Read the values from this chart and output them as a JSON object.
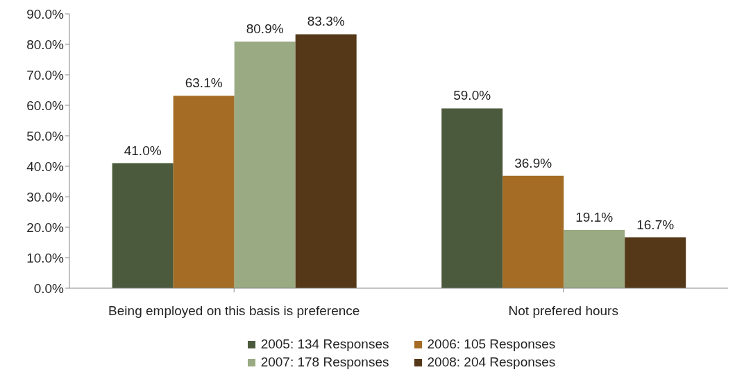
{
  "chart_data": {
    "type": "bar",
    "categories": [
      "Being employed on this basis is preference",
      "Not prefered hours"
    ],
    "series": [
      {
        "name": "2005: 134 Responses",
        "color": "#4b5a3c",
        "values": [
          41.0,
          59.0
        ],
        "value_labels": [
          "41.0%",
          "59.0%"
        ]
      },
      {
        "name": "2006: 105 Responses",
        "color": "#a56c25",
        "values": [
          63.1,
          36.9
        ],
        "value_labels": [
          "63.1%",
          "36.9%"
        ]
      },
      {
        "name": "2007: 178 Responses",
        "color": "#9aaa82",
        "values": [
          80.9,
          19.1
        ],
        "value_labels": [
          "80.9%",
          "19.1%"
        ]
      },
      {
        "name": "2008: 204 Responses",
        "color": "#543817",
        "values": [
          83.3,
          16.7
        ],
        "value_labels": [
          "83.3%",
          "16.7%"
        ]
      }
    ],
    "ylim": [
      0,
      90
    ],
    "yticks": [
      {
        "value": 0,
        "label": "0.0%"
      },
      {
        "value": 10,
        "label": "10.0%"
      },
      {
        "value": 20,
        "label": "20.0%"
      },
      {
        "value": 30,
        "label": "30.0%"
      },
      {
        "value": 40,
        "label": "40.0%"
      },
      {
        "value": 50,
        "label": "50.0%"
      },
      {
        "value": 60,
        "label": "60.0%"
      },
      {
        "value": 70,
        "label": "70.0%"
      },
      {
        "value": 80,
        "label": "80.0%"
      },
      {
        "value": 90,
        "label": "90.0%"
      }
    ],
    "legend": "bottom"
  }
}
